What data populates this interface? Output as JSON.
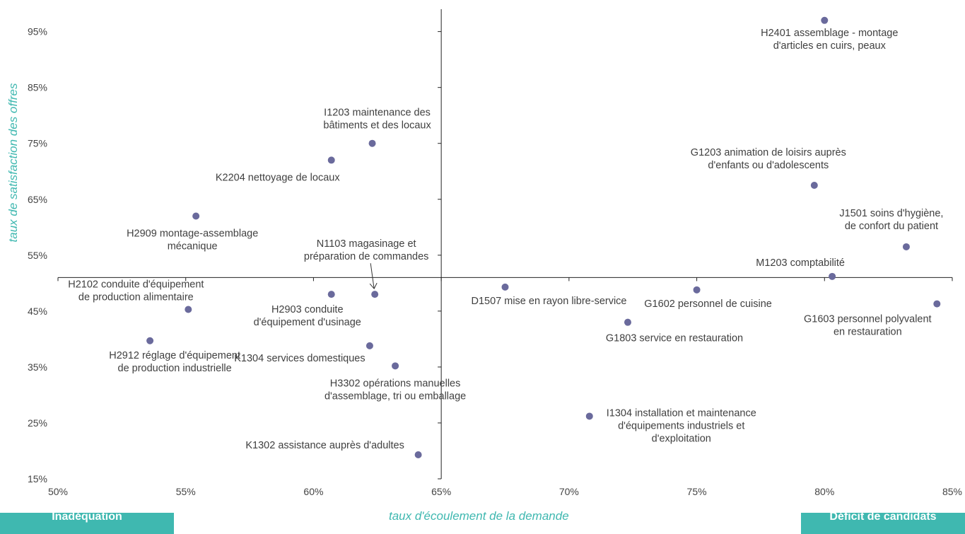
{
  "chart_data": {
    "type": "scatter",
    "xlabel": "taux d'écoulement de la demande",
    "ylabel": "taux de satisfaction des offres",
    "xlim": [
      0.5,
      0.85
    ],
    "ylim": [
      0.15,
      0.99
    ],
    "x_cross": 0.65,
    "y_cross": 0.51,
    "x_ticks": [
      {
        "value": 0.5,
        "label": "50%"
      },
      {
        "value": 0.55,
        "label": "55%"
      },
      {
        "value": 0.6,
        "label": "60%"
      },
      {
        "value": 0.65,
        "label": "65%"
      },
      {
        "value": 0.7,
        "label": "70%"
      },
      {
        "value": 0.75,
        "label": "75%"
      },
      {
        "value": 0.8,
        "label": "80%"
      },
      {
        "value": 0.85,
        "label": "85%"
      }
    ],
    "y_ticks": [
      {
        "value": 0.15,
        "label": "15%"
      },
      {
        "value": 0.25,
        "label": "25%"
      },
      {
        "value": 0.35,
        "label": "35%"
      },
      {
        "value": 0.45,
        "label": "45%"
      },
      {
        "value": 0.55,
        "label": "55%"
      },
      {
        "value": 0.65,
        "label": "65%"
      },
      {
        "value": 0.75,
        "label": "75%"
      },
      {
        "value": 0.85,
        "label": "85%"
      },
      {
        "value": 0.95,
        "label": "95%"
      }
    ],
    "marker_color": "#6a6a9c",
    "points": [
      {
        "code": "H2401",
        "x": 0.8,
        "y": 0.97,
        "label": [
          "H2401 assemblage - montage",
          "d'articles en cuirs, peaux"
        ]
      },
      {
        "code": "I1203",
        "x": 0.623,
        "y": 0.75,
        "label": [
          "I1203 maintenance des",
          "bâtiments et des locaux"
        ]
      },
      {
        "code": "K2204",
        "x": 0.607,
        "y": 0.72,
        "label": [
          "K2204 nettoyage de locaux"
        ]
      },
      {
        "code": "G1203",
        "x": 0.796,
        "y": 0.675,
        "label": [
          "G1203 animation de loisirs auprès",
          "d'enfants ou d'adolescents"
        ]
      },
      {
        "code": "H2909",
        "x": 0.554,
        "y": 0.62,
        "label": [
          "H2909 montage-assemblage",
          "mécanique"
        ]
      },
      {
        "code": "J1501",
        "x": 0.832,
        "y": 0.565,
        "label": [
          "J1501 soins d'hygiène,",
          "de confort du patient"
        ]
      },
      {
        "code": "M1203",
        "x": 0.803,
        "y": 0.512,
        "label": [
          "M1203 comptabilité"
        ]
      },
      {
        "code": "D1507",
        "x": 0.675,
        "y": 0.493,
        "label": [
          "D1507 mise en rayon libre-service"
        ]
      },
      {
        "code": "G1602",
        "x": 0.75,
        "y": 0.488,
        "label": [
          "G1602 personnel de cuisine"
        ]
      },
      {
        "code": "N1103",
        "x": 0.624,
        "y": 0.48,
        "label": [
          "N1103 magasinage et",
          "préparation de commandes"
        ]
      },
      {
        "code": "H2903",
        "x": 0.607,
        "y": 0.48,
        "label": [
          "H2903 conduite",
          "d'équipement d'usinage"
        ]
      },
      {
        "code": "G1603",
        "x": 0.844,
        "y": 0.463,
        "label": [
          "G1603 personnel polyvalent",
          "en restauration"
        ]
      },
      {
        "code": "H2102",
        "x": 0.551,
        "y": 0.453,
        "label": [
          "H2102 conduite d'équipement",
          "de production alimentaire"
        ]
      },
      {
        "code": "G1803",
        "x": 0.723,
        "y": 0.43,
        "label": [
          "G1803 service en restauration"
        ]
      },
      {
        "code": "H2912",
        "x": 0.536,
        "y": 0.397,
        "label": [
          "H2912 réglage d'équipement",
          "de production industrielle"
        ]
      },
      {
        "code": "K1304",
        "x": 0.622,
        "y": 0.388,
        "label": [
          "K1304 services domestiques"
        ]
      },
      {
        "code": "H3302",
        "x": 0.632,
        "y": 0.352,
        "label": [
          "H3302 opérations manuelles",
          "d'assemblage, tri ou emballage"
        ]
      },
      {
        "code": "I1304",
        "x": 0.708,
        "y": 0.262,
        "label": [
          "I1304 installation et maintenance",
          "d'équipements industriels et",
          "d'exploitation"
        ]
      },
      {
        "code": "K1302",
        "x": 0.641,
        "y": 0.193,
        "label": [
          "K1302 assistance auprès d'adultes"
        ]
      }
    ]
  },
  "corner_labels": {
    "left": "Inadéquation",
    "right": "Déficit de candidats"
  }
}
